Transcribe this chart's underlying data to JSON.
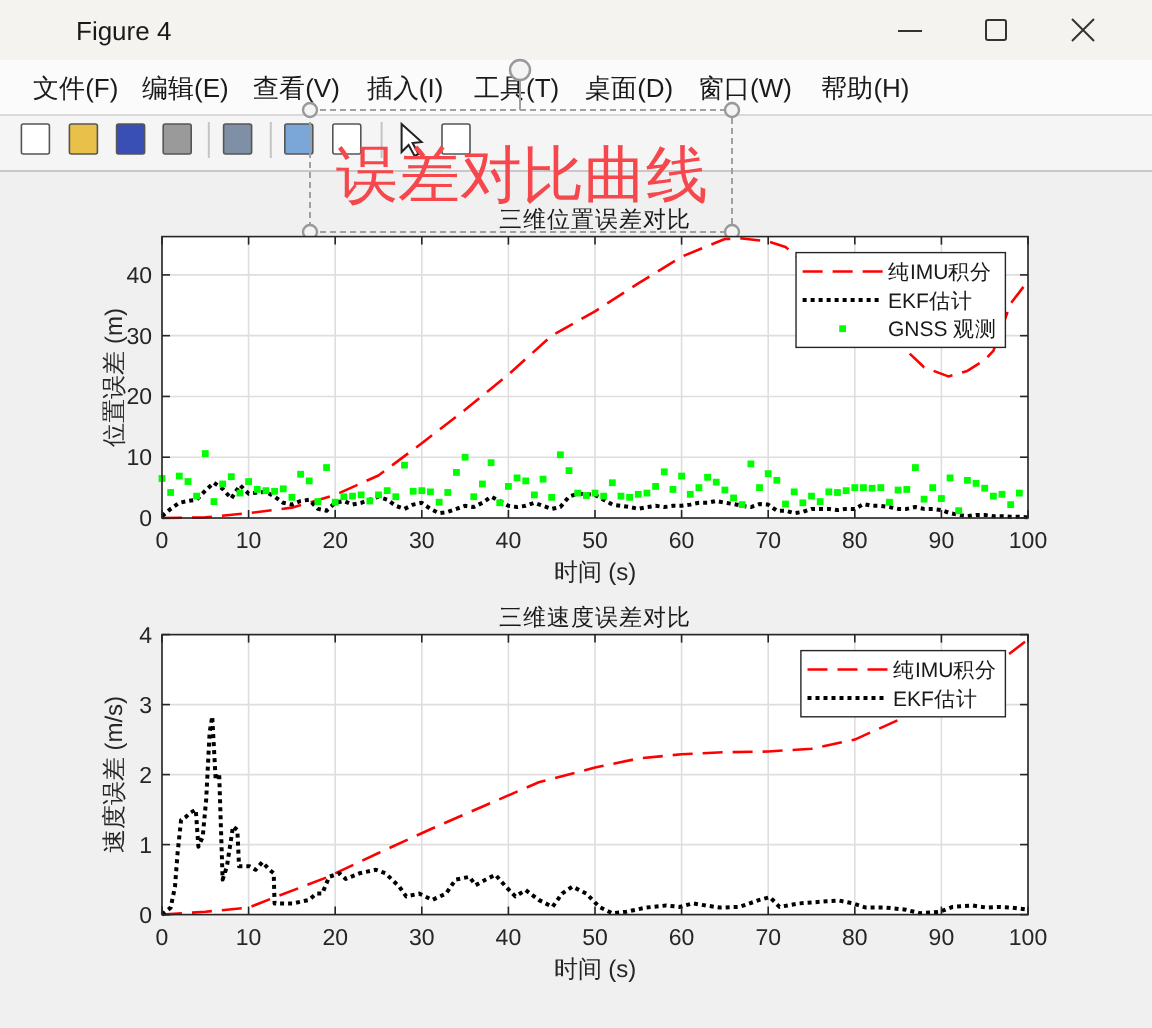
{
  "chart_data": [
    {
      "type": "line",
      "title": "三维位置误差对比",
      "xlabel": "时间 (s)",
      "ylabel": "位置误差 (m)",
      "xlim": [
        0,
        100
      ],
      "ylim": [
        0,
        46.3
      ],
      "xticks": [
        0,
        10,
        20,
        30,
        40,
        50,
        60,
        70,
        80,
        90,
        100
      ],
      "yticks": [
        0,
        10,
        20,
        30,
        40
      ],
      "grid": true,
      "legend": "top right",
      "annotations": [
        "Figure 4",
        "文件(F)",
        "编辑(E)",
        "查看(V)",
        "插入(I)",
        "工具(T)",
        "桌面(D)",
        "窗口(W)",
        "帮助(H)",
        "误差对比曲线"
      ],
      "series": [
        {
          "name": "纯IMU积分",
          "color": "#ff0000",
          "line_style": "dashed",
          "x": [
            0,
            5,
            10,
            15,
            20,
            25,
            30,
            35,
            40,
            45,
            50,
            55,
            60,
            65,
            67,
            70,
            72,
            86,
            88,
            90.8,
            93,
            95,
            96,
            98,
            100
          ],
          "values": [
            0,
            0.1,
            0.8,
            1.7,
            3.8,
            7.0,
            12.3,
            17.8,
            23.6,
            30.0,
            34.0,
            38.6,
            43.0,
            45.9,
            46.0,
            45.5,
            44.6,
            27.5,
            24.8,
            23.3,
            24.2,
            26.0,
            27.5,
            35.3,
            39.0
          ]
        },
        {
          "name": "EKF估计",
          "color": "#000000",
          "line_style": "dotted",
          "x": [
            0,
            1,
            2,
            3,
            4,
            5,
            6,
            7,
            8,
            9,
            10,
            11,
            12,
            13,
            14,
            15,
            16,
            17,
            18,
            19,
            20,
            21,
            22,
            23,
            24,
            25,
            26,
            27,
            28,
            29,
            30,
            31,
            32,
            33,
            34,
            35,
            36,
            37,
            38,
            39,
            40,
            41,
            42,
            43,
            44,
            45,
            46,
            47,
            48,
            49,
            50,
            51,
            52,
            53,
            54,
            55,
            56,
            57,
            58,
            59,
            60,
            61,
            62,
            63,
            64,
            65,
            66,
            67,
            68,
            69,
            70,
            71,
            72,
            73,
            74,
            75,
            76,
            77,
            78,
            79,
            80,
            81,
            82,
            83,
            84,
            85,
            86,
            87,
            88,
            89,
            90,
            91,
            92,
            93,
            94,
            95,
            96,
            97,
            98,
            99,
            100
          ],
          "values": [
            0.3,
            1.5,
            2.5,
            2.8,
            3.0,
            4.5,
            5.8,
            4.8,
            3.2,
            5.4,
            4.0,
            4.2,
            4.3,
            3.5,
            2.5,
            2.2,
            2.8,
            3.0,
            1.5,
            1.2,
            2.5,
            2.8,
            2.2,
            2.5,
            3.0,
            3.5,
            3.0,
            2.0,
            1.5,
            2.2,
            2.5,
            1.5,
            0.8,
            1.0,
            1.5,
            2.0,
            1.8,
            2.5,
            3.5,
            2.8,
            2.0,
            1.8,
            2.0,
            2.5,
            2.0,
            1.5,
            1.8,
            3.5,
            4.0,
            3.9,
            3.8,
            3.0,
            2.2,
            2.0,
            1.8,
            1.5,
            1.8,
            2.0,
            1.8,
            2.0,
            2.0,
            2.2,
            2.5,
            2.5,
            2.8,
            2.5,
            2.3,
            2.0,
            1.8,
            2.3,
            2.2,
            1.2,
            1.2,
            0.8,
            1.0,
            1.5,
            1.5,
            1.5,
            1.3,
            1.5,
            1.5,
            2.3,
            2.0,
            2.0,
            1.8,
            1.5,
            1.5,
            1.8,
            1.5,
            1.5,
            1.3,
            0.8,
            0.5,
            0.3,
            0.5,
            0.5,
            0.3,
            0.3,
            0.2,
            0.2,
            0.1
          ]
        },
        {
          "name": "GNSS 观测",
          "color": "#00ff00",
          "type": "scatter",
          "marker": "square",
          "x": [
            0,
            1,
            2,
            3,
            4,
            5,
            6,
            7,
            8,
            9,
            10,
            11,
            12,
            13,
            14,
            15,
            16,
            17,
            18,
            19,
            20,
            21,
            22,
            23,
            24,
            25,
            26,
            27,
            28,
            29,
            30,
            31,
            32,
            33,
            34,
            35,
            36,
            37,
            38,
            39,
            40,
            41,
            42,
            43,
            44,
            45,
            46,
            47,
            48,
            49,
            50,
            51,
            52,
            53,
            54,
            55,
            56,
            57,
            58,
            59,
            60,
            61,
            62,
            63,
            64,
            65,
            66,
            67,
            68,
            69,
            70,
            71,
            72,
            73,
            74,
            75,
            76,
            77,
            78,
            79,
            80,
            81,
            82,
            83,
            84,
            85,
            86,
            87,
            88,
            89,
            90,
            91,
            92,
            93,
            94,
            95,
            96,
            97,
            98,
            99
          ],
          "values": [
            6.5,
            4.2,
            6.9,
            6.0,
            3.6,
            10.6,
            2.7,
            5.6,
            6.8,
            4.1,
            6.0,
            4.7,
            4.5,
            4.4,
            4.8,
            3.4,
            7.2,
            6.1,
            2.7,
            8.3,
            2.6,
            3.5,
            3.6,
            3.8,
            2.8,
            3.8,
            4.5,
            3.5,
            8.7,
            4.4,
            4.5,
            4.3,
            2.6,
            4.2,
            7.5,
            10.0,
            3.5,
            5.6,
            9.1,
            2.5,
            5.2,
            6.6,
            6.1,
            3.8,
            6.4,
            3.4,
            10.4,
            7.8,
            4.1,
            3.7,
            4.1,
            3.6,
            5.8,
            3.6,
            3.4,
            3.9,
            4.1,
            5.2,
            7.6,
            4.7,
            6.9,
            3.9,
            5.0,
            6.7,
            5.9,
            4.6,
            3.3,
            2.2,
            8.9,
            5.0,
            7.3,
            6.2,
            2.3,
            4.3,
            2.5,
            3.6,
            2.7,
            4.3,
            4.2,
            4.5,
            5.0,
            5.0,
            4.9,
            5.0,
            2.6,
            4.6,
            4.7,
            8.3,
            3.1,
            5.0,
            3.2,
            6.6,
            1.2,
            6.2,
            5.7,
            4.9,
            3.6,
            3.9,
            2.2,
            4.1
          ]
        }
      ]
    },
    {
      "type": "line",
      "title": "三维速度误差对比",
      "xlabel": "时间 (s)",
      "ylabel": "速度误差 (m/s)",
      "xlim": [
        0,
        100
      ],
      "ylim": [
        0,
        4
      ],
      "xticks": [
        0,
        10,
        20,
        30,
        40,
        50,
        60,
        70,
        80,
        90,
        100
      ],
      "yticks": [
        0,
        1,
        2,
        3,
        4
      ],
      "grid": true,
      "legend": "top right",
      "series": [
        {
          "name": "纯IMU积分",
          "color": "#ff0000",
          "line_style": "dashed",
          "x": [
            0,
            5,
            10,
            13.5,
            19,
            25,
            31,
            37.5,
            43.5,
            50,
            55,
            60,
            65,
            70,
            75,
            80,
            85,
            98,
            100
          ],
          "values": [
            0,
            0.04,
            0.1,
            0.27,
            0.53,
            0.88,
            1.22,
            1.57,
            1.89,
            2.1,
            2.23,
            2.29,
            2.32,
            2.33,
            2.37,
            2.5,
            2.78,
            3.74,
            3.93
          ]
        },
        {
          "name": "EKF估计",
          "color": "#000000",
          "line_style": "dotted",
          "x": [
            0,
            1,
            1.5,
            1.8,
            2.2,
            2.8,
            3.2,
            3.9,
            4.2,
            4.7,
            5.1,
            5.5,
            5.8,
            6.2,
            6.6,
            7.0,
            7.5,
            8.2,
            8.7,
            8.9,
            10.1,
            10.8,
            11.6,
            12.4,
            12.9,
            13.0,
            15.1,
            17.0,
            17.8,
            18.5,
            19.3,
            20.5,
            21.2,
            22.8,
            24.7,
            25.8,
            27.4,
            28.2,
            29.7,
            31.2,
            32.8,
            33.9,
            35.5,
            36.2,
            37.4,
            38.5,
            39.7,
            40.8,
            42.0,
            43.5,
            45.1,
            46.2,
            47.4,
            49.0,
            50.5,
            52.0,
            53.6,
            55.9,
            58.2,
            59.8,
            61.3,
            62.8,
            64.4,
            66.7,
            69.0,
            70.2,
            71.3,
            73.6,
            76.7,
            78.2,
            79.8,
            81.3,
            83.6,
            85.9,
            87.5,
            89.8,
            91.3,
            93.6,
            95.2,
            96.7,
            98.2,
            100
          ],
          "values": [
            0,
            0.1,
            0.4,
            0.88,
            1.35,
            1.4,
            1.45,
            1.5,
            0.97,
            1.11,
            1.64,
            2.6,
            2.83,
            1.92,
            2.02,
            0.5,
            0.69,
            1.26,
            1.21,
            0.69,
            0.69,
            0.64,
            0.75,
            0.64,
            0.59,
            0.16,
            0.16,
            0.21,
            0.3,
            0.3,
            0.54,
            0.59,
            0.51,
            0.59,
            0.64,
            0.59,
            0.4,
            0.26,
            0.3,
            0.21,
            0.3,
            0.5,
            0.54,
            0.42,
            0.5,
            0.57,
            0.4,
            0.26,
            0.35,
            0.21,
            0.11,
            0.3,
            0.4,
            0.3,
            0.11,
            0.02,
            0.04,
            0.1,
            0.13,
            0.11,
            0.16,
            0.13,
            0.1,
            0.11,
            0.21,
            0.25,
            0.11,
            0.16,
            0.19,
            0.2,
            0.16,
            0.1,
            0.1,
            0.07,
            0.02,
            0.04,
            0.11,
            0.13,
            0.1,
            0.11,
            0.1,
            0.07
          ]
        }
      ]
    }
  ]
}
